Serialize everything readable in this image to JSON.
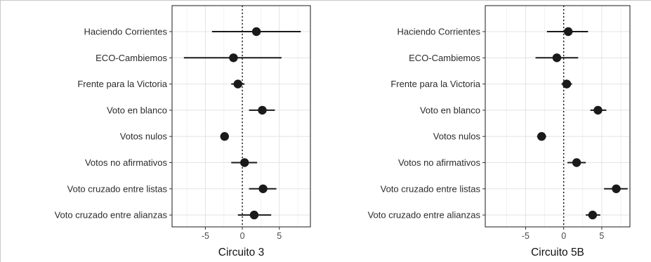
{
  "chart_data": [
    {
      "type": "scatter",
      "subtype": "coefficient-interval",
      "title": "Circuito 3",
      "xlabel": "Circuito 3",
      "ylabel": "",
      "xlim": [
        -9.5,
        9.2
      ],
      "x_ticks": [
        -5,
        0,
        5
      ],
      "x_tick_labels": [
        "-5",
        "0",
        "5"
      ],
      "reference_line": {
        "x": 0,
        "style": "dotted"
      },
      "grid": true,
      "categories": [
        "Haciendo Corrientes",
        "ECO-Cambiemos",
        "Frente para la Victoria",
        "Voto en blanco",
        "Votos nulos",
        "Votos no afirmativos",
        "Voto cruzado entre listas",
        "Voto cruzado entre alianzas"
      ],
      "estimates": [
        1.9,
        -1.2,
        -0.6,
        2.7,
        -2.4,
        0.3,
        2.8,
        1.6
      ],
      "lower": [
        -4.1,
        -7.9,
        -1.5,
        0.9,
        -2.8,
        -1.5,
        0.9,
        -0.6
      ],
      "upper": [
        7.9,
        5.3,
        0.3,
        4.4,
        -1.9,
        2.0,
        4.6,
        3.9
      ]
    },
    {
      "type": "scatter",
      "subtype": "coefficient-interval",
      "title": "Circuito 5B",
      "xlabel": "Circuito 5B",
      "ylabel": "",
      "xlim": [
        -10.3,
        8.7
      ],
      "x_ticks": [
        -5,
        0,
        5
      ],
      "x_tick_labels": [
        "-5",
        "0",
        "5"
      ],
      "reference_line": {
        "x": 0,
        "style": "dotted"
      },
      "grid": true,
      "categories": [
        "Haciendo Corrientes",
        "ECO-Cambiemos",
        "Frente para la Victoria",
        "Voto en blanco",
        "Votos nulos",
        "Votos no afirmativos",
        "Voto cruzado entre listas",
        "Voto cruzado entre alianzas"
      ],
      "estimates": [
        0.6,
        -0.9,
        0.4,
        4.5,
        -2.9,
        1.7,
        6.9,
        3.8
      ],
      "lower": [
        -2.2,
        -3.7,
        -0.3,
        3.5,
        -3.5,
        0.5,
        5.3,
        2.9
      ],
      "upper": [
        3.2,
        1.9,
        1.1,
        5.6,
        -2.3,
        2.9,
        8.4,
        4.8
      ]
    }
  ]
}
